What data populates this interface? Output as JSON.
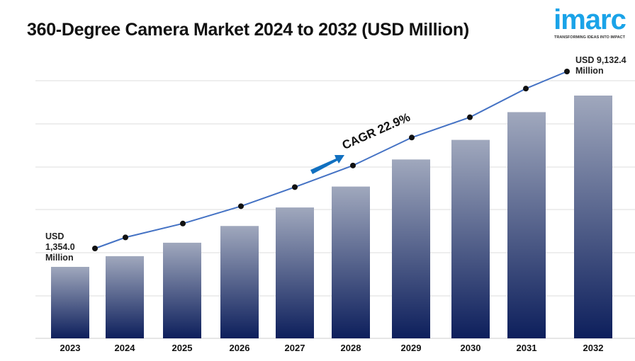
{
  "header": {
    "title": "360-Degree Camera Market 2024 to 2032 (USD Million)"
  },
  "logo": {
    "word": "imarc",
    "tagline": "TRANSFORMING IDEAS INTO IMPACT"
  },
  "chart_data": {
    "type": "bar",
    "title": "360-Degree Camera Market 2024 to 2032 (USD Million)",
    "categories": [
      "2023",
      "2024",
      "2025",
      "2026",
      "2027",
      "2028",
      "2029",
      "2030",
      "2031",
      "2032"
    ],
    "values": [
      1354.0,
      1840,
      2450,
      3210,
      4050,
      5000,
      6230,
      7120,
      8380,
      9132.4
    ],
    "annotations": {
      "start": "USD 1,354.0 Million",
      "end": "USD 9,132.4 Million",
      "cagr": "CAGR 22.9%"
    },
    "start_label": [
      "USD",
      "1,354.0",
      "Million"
    ],
    "end_label": [
      "USD 9,132.4",
      "Million"
    ],
    "xlabel": "",
    "ylabel": "",
    "grid": true,
    "legend": "none",
    "colors": {
      "bar_top": "#a0a8bd",
      "bar_bottom": "#0d1f5c",
      "line": "#4472c4",
      "arrow": "#1170c0"
    }
  }
}
